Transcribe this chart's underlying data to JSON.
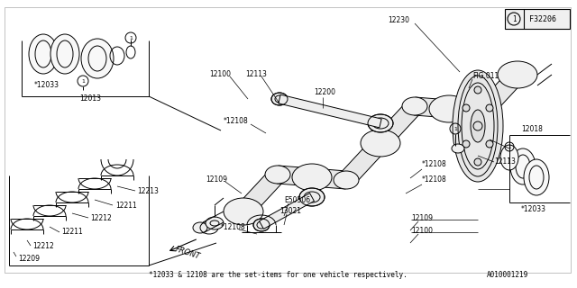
{
  "bg_color": "#ffffff",
  "line_color": "#000000",
  "text_color": "#000000",
  "bottom_note": "*12033 & 12108 are the set-items for one vehicle respectively.",
  "bottom_ref": "A010001219",
  "fig_ref": "F32206",
  "label_fs": 5.5,
  "lw": 0.7
}
